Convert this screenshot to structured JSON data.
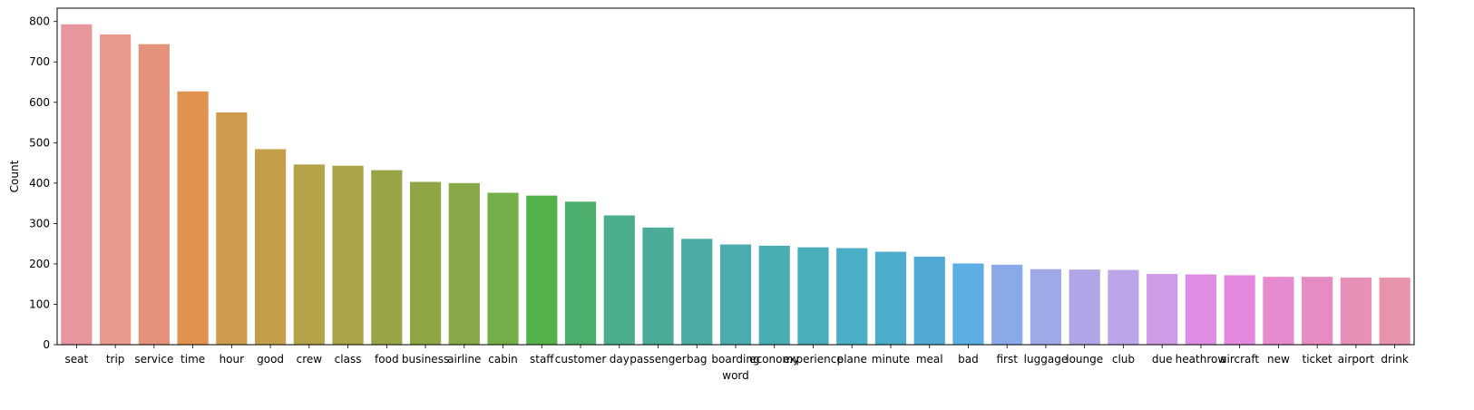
{
  "chart_data": {
    "type": "bar",
    "title": "",
    "xlabel": "word",
    "ylabel": "Count",
    "ylim": [
      0,
      833
    ],
    "yticks": [
      0,
      100,
      200,
      300,
      400,
      500,
      600,
      700,
      800
    ],
    "grid": false,
    "legend": "none",
    "categories": [
      "seat",
      "trip",
      "service",
      "time",
      "hour",
      "good",
      "crew",
      "class",
      "food",
      "business",
      "airline",
      "cabin",
      "staff",
      "customer",
      "day",
      "passenger",
      "bag",
      "boarding",
      "economy",
      "experience",
      "plane",
      "minute",
      "meal",
      "bad",
      "first",
      "luggage",
      "lounge",
      "club",
      "due",
      "heathrow",
      "aircraft",
      "new",
      "ticket",
      "airport",
      "drink"
    ],
    "values": [
      793,
      768,
      744,
      627,
      575,
      484,
      446,
      443,
      432,
      403,
      400,
      376,
      369,
      354,
      320,
      290,
      262,
      248,
      245,
      241,
      239,
      230,
      218,
      201,
      198,
      187,
      186,
      185,
      175,
      174,
      172,
      168,
      168,
      166,
      166
    ],
    "colors": [
      "#e8969e",
      "#e89a8c",
      "#e5927a",
      "#e0924e",
      "#cf9b4c",
      "#c49e48",
      "#b3a247",
      "#a8a447",
      "#99a446",
      "#8ea646",
      "#87a847",
      "#73af48",
      "#53b14a",
      "#4bae6d",
      "#4bad8a",
      "#4aac98",
      "#4aaca5",
      "#4aacae",
      "#4aadb4",
      "#4aadbb",
      "#4aaec6",
      "#4caccc",
      "#50a9d4",
      "#5daee2",
      "#8aa9e8",
      "#a0a9e8",
      "#b0a5e7",
      "#bca5e8",
      "#cf9ae6",
      "#dd8de4",
      "#e589df",
      "#e68bd0",
      "#e78cc3",
      "#e88fb8",
      "#e893ac"
    ]
  }
}
